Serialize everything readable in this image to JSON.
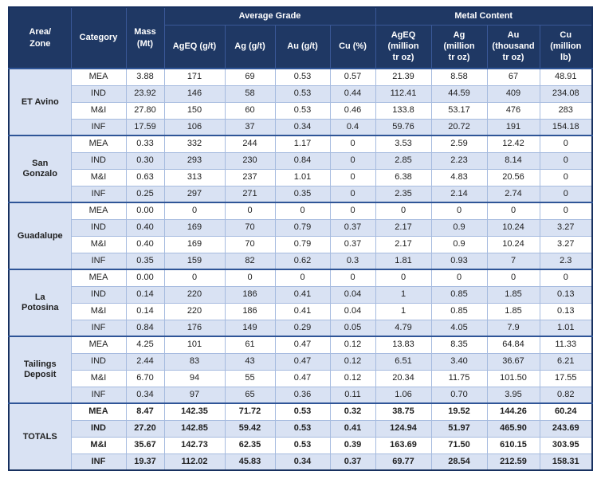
{
  "table": {
    "header": {
      "area_zone": "Area/\nZone",
      "category": "Category",
      "mass": "Mass\n(Mt)",
      "avg_grade_group": "Average Grade",
      "metal_content_group": "Metal Content",
      "sub": {
        "ageq_gt": "AgEQ (g/t)",
        "ag_gt": "Ag (g/t)",
        "au_gt": "Au (g/t)",
        "cu_pct": "Cu (%)",
        "ageq_moz": "AgEQ\n(million\ntr oz)",
        "ag_moz": "Ag\n(million\ntr oz)",
        "au_koz": "Au\n(thousand\ntr oz)",
        "cu_mlb": "Cu\n(million\nlb)"
      }
    },
    "colors": {
      "header_bg": "#1F3864",
      "stripe_bg": "#D9E2F3",
      "group_border": "#2F5597",
      "thin_border": "#A6BBDF"
    },
    "groups": [
      {
        "name": "ET Avino",
        "bold": false,
        "rows": [
          {
            "category": "MEA",
            "values": [
              "3.88",
              "171",
              "69",
              "0.53",
              "0.57",
              "21.39",
              "8.58",
              "67",
              "48.91"
            ]
          },
          {
            "category": "IND",
            "values": [
              "23.92",
              "146",
              "58",
              "0.53",
              "0.44",
              "112.41",
              "44.59",
              "409",
              "234.08"
            ]
          },
          {
            "category": "M&I",
            "values": [
              "27.80",
              "150",
              "60",
              "0.53",
              "0.46",
              "133.8",
              "53.17",
              "476",
              "283"
            ]
          },
          {
            "category": "INF",
            "values": [
              "17.59",
              "106",
              "37",
              "0.34",
              "0.4",
              "59.76",
              "20.72",
              "191",
              "154.18"
            ]
          }
        ]
      },
      {
        "name": "San\nGonzalo",
        "bold": false,
        "rows": [
          {
            "category": "MEA",
            "values": [
              "0.33",
              "332",
              "244",
              "1.17",
              "0",
              "3.53",
              "2.59",
              "12.42",
              "0"
            ]
          },
          {
            "category": "IND",
            "values": [
              "0.30",
              "293",
              "230",
              "0.84",
              "0",
              "2.85",
              "2.23",
              "8.14",
              "0"
            ]
          },
          {
            "category": "M&I",
            "values": [
              "0.63",
              "313",
              "237",
              "1.01",
              "0",
              "6.38",
              "4.83",
              "20.56",
              "0"
            ]
          },
          {
            "category": "INF",
            "values": [
              "0.25",
              "297",
              "271",
              "0.35",
              "0",
              "2.35",
              "2.14",
              "2.74",
              "0"
            ]
          }
        ]
      },
      {
        "name": "Guadalupe",
        "bold": false,
        "rows": [
          {
            "category": "MEA",
            "values": [
              "0.00",
              "0",
              "0",
              "0",
              "0",
              "0",
              "0",
              "0",
              "0"
            ]
          },
          {
            "category": "IND",
            "values": [
              "0.40",
              "169",
              "70",
              "0.79",
              "0.37",
              "2.17",
              "0.9",
              "10.24",
              "3.27"
            ]
          },
          {
            "category": "M&I",
            "values": [
              "0.40",
              "169",
              "70",
              "0.79",
              "0.37",
              "2.17",
              "0.9",
              "10.24",
              "3.27"
            ]
          },
          {
            "category": "INF",
            "values": [
              "0.35",
              "159",
              "82",
              "0.62",
              "0.3",
              "1.81",
              "0.93",
              "7",
              "2.3"
            ]
          }
        ]
      },
      {
        "name": "La\nPotosina",
        "bold": false,
        "rows": [
          {
            "category": "MEA",
            "values": [
              "0.00",
              "0",
              "0",
              "0",
              "0",
              "0",
              "0",
              "0",
              "0"
            ]
          },
          {
            "category": "IND",
            "values": [
              "0.14",
              "220",
              "186",
              "0.41",
              "0.04",
              "1",
              "0.85",
              "1.85",
              "0.13"
            ]
          },
          {
            "category": "M&I",
            "values": [
              "0.14",
              "220",
              "186",
              "0.41",
              "0.04",
              "1",
              "0.85",
              "1.85",
              "0.13"
            ]
          },
          {
            "category": "INF",
            "values": [
              "0.84",
              "176",
              "149",
              "0.29",
              "0.05",
              "4.79",
              "4.05",
              "7.9",
              "1.01"
            ]
          }
        ]
      },
      {
        "name": "Tailings\nDeposit",
        "bold": false,
        "rows": [
          {
            "category": "MEA",
            "values": [
              "4.25",
              "101",
              "61",
              "0.47",
              "0.12",
              "13.83",
              "8.35",
              "64.84",
              "11.33"
            ]
          },
          {
            "category": "IND",
            "values": [
              "2.44",
              "83",
              "43",
              "0.47",
              "0.12",
              "6.51",
              "3.40",
              "36.67",
              "6.21"
            ]
          },
          {
            "category": "M&I",
            "values": [
              "6.70",
              "94",
              "55",
              "0.47",
              "0.12",
              "20.34",
              "11.75",
              "101.50",
              "17.55"
            ]
          },
          {
            "category": "INF",
            "values": [
              "0.34",
              "97",
              "65",
              "0.36",
              "0.11",
              "1.06",
              "0.70",
              "3.95",
              "0.82"
            ]
          }
        ]
      },
      {
        "name": "TOTALS",
        "bold": true,
        "rows": [
          {
            "category": "MEA",
            "values": [
              "8.47",
              "142.35",
              "71.72",
              "0.53",
              "0.32",
              "38.75",
              "19.52",
              "144.26",
              "60.24"
            ]
          },
          {
            "category": "IND",
            "values": [
              "27.20",
              "142.85",
              "59.42",
              "0.53",
              "0.41",
              "124.94",
              "51.97",
              "465.90",
              "243.69"
            ]
          },
          {
            "category": "M&I",
            "values": [
              "35.67",
              "142.73",
              "62.35",
              "0.53",
              "0.39",
              "163.69",
              "71.50",
              "610.15",
              "303.95"
            ]
          },
          {
            "category": "INF",
            "values": [
              "19.37",
              "112.02",
              "45.83",
              "0.34",
              "0.37",
              "69.77",
              "28.54",
              "212.59",
              "158.31"
            ]
          }
        ]
      }
    ]
  }
}
